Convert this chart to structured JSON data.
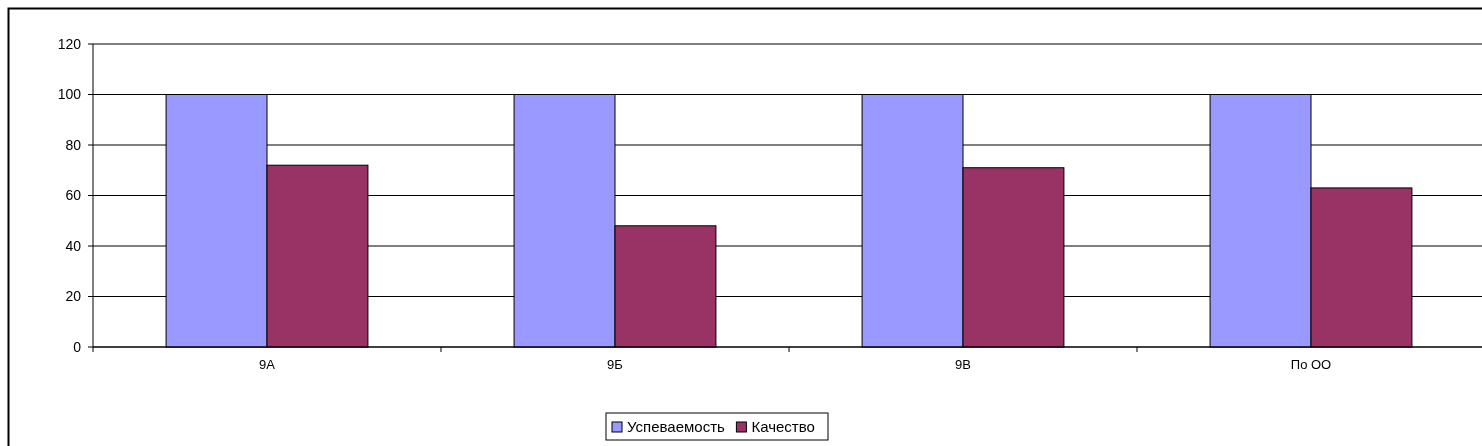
{
  "chart_data": {
    "type": "bar",
    "categories": [
      "9А",
      "9Б",
      "9В",
      "По ОО"
    ],
    "series": [
      {
        "name": "Успеваемость",
        "color": "#9999ff",
        "values": [
          100,
          100,
          100,
          100
        ]
      },
      {
        "name": "Качество",
        "color": "#993366",
        "values": [
          72,
          48,
          71,
          63
        ]
      }
    ],
    "ylim": [
      0,
      120
    ],
    "yticks": [
      0,
      20,
      40,
      60,
      80,
      100,
      120
    ],
    "grid": "y",
    "legend": "bottom"
  }
}
